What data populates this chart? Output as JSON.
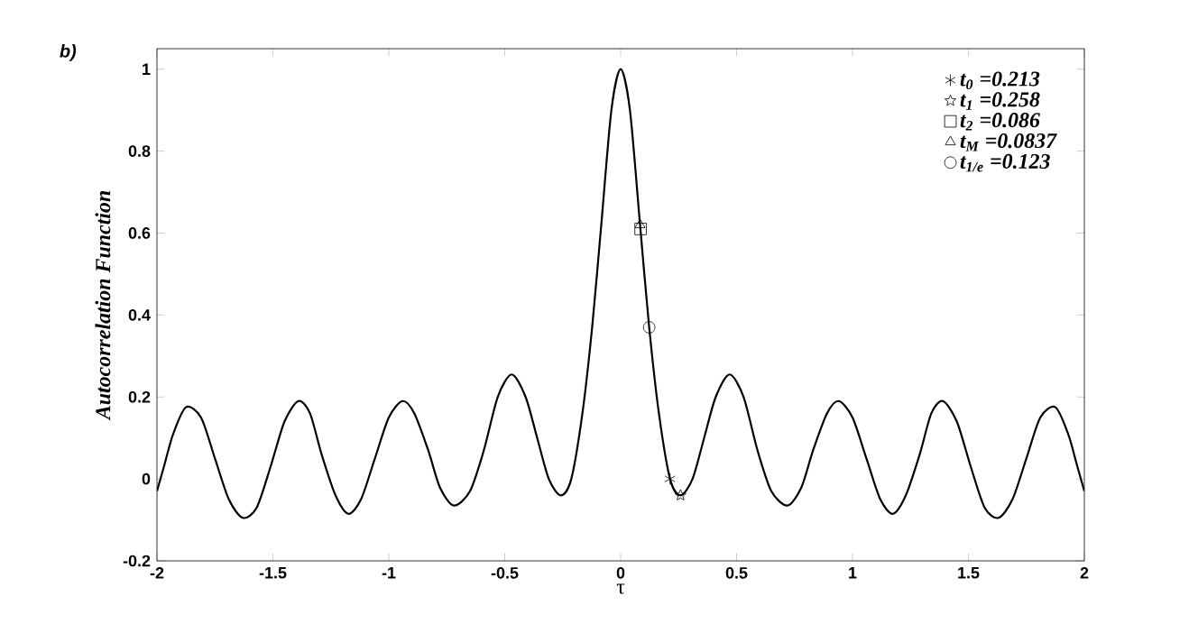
{
  "chart_data": {
    "type": "line",
    "title": "b)",
    "xlabel": "τ",
    "ylabel": "Autocorrelation Function",
    "xlim": [
      -2,
      2
    ],
    "ylim": [
      -0.2,
      1.05
    ],
    "xticks": [
      -2,
      -1.5,
      -1,
      -0.5,
      0,
      0.5,
      1,
      1.5,
      2
    ],
    "yticks": [
      -0.2,
      0,
      0.2,
      0.4,
      0.6,
      0.8,
      1
    ],
    "grid": false,
    "legend": "top right",
    "series": [
      {
        "color": "#000000",
        "marker": "none",
        "x": [
          -2.0,
          -1.97,
          -1.93,
          -1.875,
          -1.81,
          -1.75,
          -1.69,
          -1.63,
          -1.57,
          -1.51,
          -1.45,
          -1.39,
          -1.34,
          -1.29,
          -1.23,
          -1.175,
          -1.12,
          -1.06,
          -1.0,
          -0.94,
          -0.89,
          -0.83,
          -0.78,
          -0.72,
          -0.65,
          -0.59,
          -0.53,
          -0.47,
          -0.41,
          -0.36,
          -0.31,
          -0.258,
          -0.213,
          -0.165,
          -0.123,
          -0.0837,
          -0.04,
          0,
          0.04,
          0.0837,
          0.123,
          0.165,
          0.213,
          0.258,
          0.31,
          0.36,
          0.41,
          0.47,
          0.53,
          0.59,
          0.65,
          0.72,
          0.78,
          0.83,
          0.89,
          0.94,
          1.0,
          1.06,
          1.12,
          1.175,
          1.23,
          1.29,
          1.34,
          1.39,
          1.45,
          1.51,
          1.57,
          1.63,
          1.69,
          1.75,
          1.81,
          1.875,
          1.93,
          1.97,
          2.0
        ],
        "values": [
          -0.03,
          0.03,
          0.11,
          0.175,
          0.15,
          0.05,
          -0.05,
          -0.095,
          -0.07,
          0.03,
          0.14,
          0.19,
          0.16,
          0.06,
          -0.04,
          -0.085,
          -0.05,
          0.05,
          0.15,
          0.19,
          0.16,
          0.07,
          -0.02,
          -0.065,
          -0.03,
          0.07,
          0.2,
          0.255,
          0.2,
          0.1,
          0.0,
          -0.04,
          0,
          0.16,
          0.37,
          0.62,
          0.9,
          1,
          0.9,
          0.62,
          0.37,
          0.16,
          0,
          -0.04,
          0.0,
          0.1,
          0.2,
          0.255,
          0.2,
          0.07,
          -0.03,
          -0.065,
          -0.02,
          0.07,
          0.16,
          0.19,
          0.15,
          0.05,
          -0.05,
          -0.085,
          -0.04,
          0.06,
          0.16,
          0.19,
          0.14,
          0.03,
          -0.07,
          -0.095,
          -0.05,
          0.05,
          0.15,
          0.175,
          0.11,
          0.03,
          -0.03
        ]
      },
      {
        "type": "scatter",
        "name": "t$_{0}$ =0.213",
        "color": "#000000",
        "marker": "cross",
        "x": [
          0.213
        ],
        "values": [
          0
        ]
      },
      {
        "type": "scatter",
        "name": "t$_{1}$ =0.258",
        "color": "#000000",
        "marker": "star",
        "x": [
          0.258
        ],
        "values": [
          -0.04
        ]
      },
      {
        "type": "scatter",
        "name": "t$_{2}$ =0.086",
        "color": "#000000",
        "marker": "square",
        "x": [
          0.086
        ],
        "values": [
          0.61
        ]
      },
      {
        "type": "scatter",
        "name": "t$_{M}$ =0.0837",
        "color": "#000000",
        "marker": "triangle",
        "x": [
          0.0837
        ],
        "values": [
          0.62
        ]
      },
      {
        "type": "scatter",
        "name": "t$_{1/e}$ =0.123",
        "color": "#000000",
        "marker": "circle",
        "x": [
          0.123
        ],
        "values": [
          0.37
        ]
      }
    ]
  }
}
